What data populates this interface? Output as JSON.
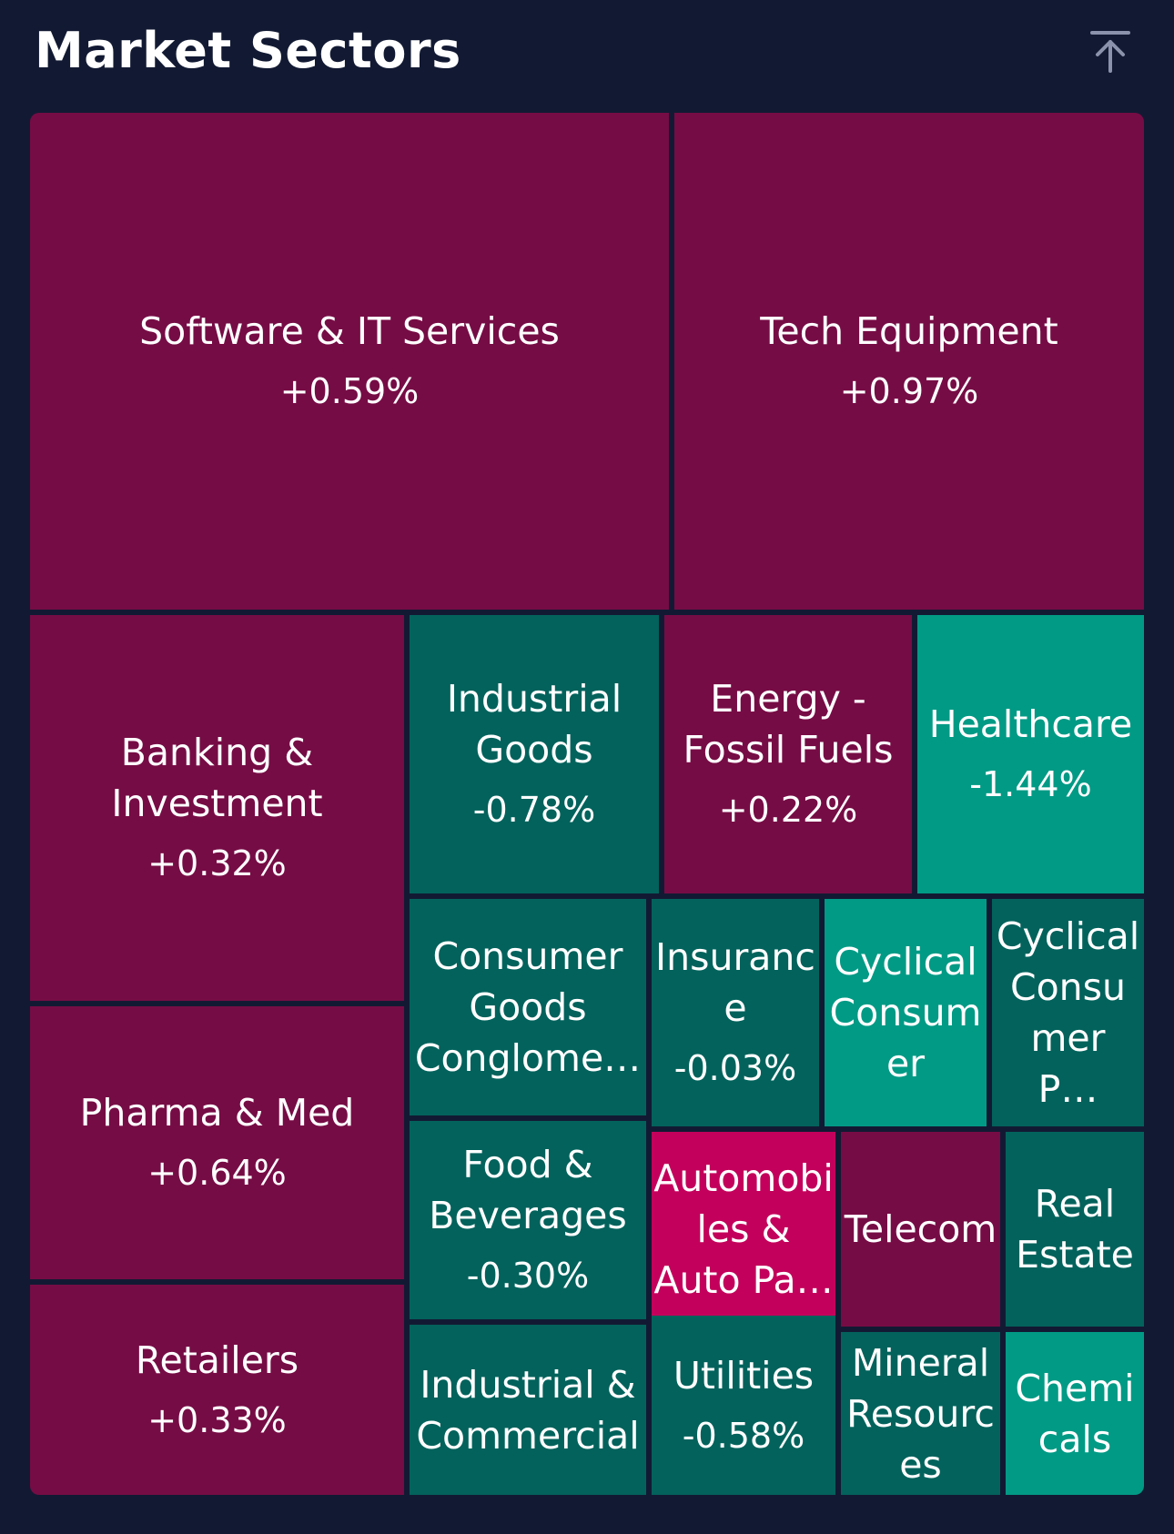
{
  "header": {
    "title": "Market Sectors",
    "collapse_icon": "arrow-up-to-line-icon"
  },
  "colors": {
    "background": "#121a33",
    "positive": "#760c45",
    "positive_strong": "#c3005b",
    "negative": "#03625c",
    "negative_strong": "#019a85"
  },
  "sectors": [
    {
      "name_lines": [
        "Software & IT Services"
      ],
      "change": "+0.59%"
    },
    {
      "name_lines": [
        "Tech Equipment"
      ],
      "change": "+0.97%"
    },
    {
      "name_lines": [
        "Banking &",
        "Investment"
      ],
      "change": "+0.32%"
    },
    {
      "name_lines": [
        "Industrial",
        "Goods"
      ],
      "change": "-0.78%"
    },
    {
      "name_lines": [
        "Energy -",
        "Fossil Fuels"
      ],
      "change": "+0.22%"
    },
    {
      "name_lines": [
        "Healthcare"
      ],
      "change": "-1.44%"
    },
    {
      "name_lines": [
        "Pharma & Med"
      ],
      "change": "+0.64%"
    },
    {
      "name_lines": [
        "Consumer",
        "Goods",
        "Conglome…"
      ],
      "change": ""
    },
    {
      "name_lines": [
        "Insuranc",
        "e"
      ],
      "change": "-0.03%"
    },
    {
      "name_lines": [
        "Cyclical",
        "Consum",
        "er"
      ],
      "change": ""
    },
    {
      "name_lines": [
        "Cyclical",
        "Consu",
        "mer P…"
      ],
      "change": ""
    },
    {
      "name_lines": [
        "Food &",
        "Beverages"
      ],
      "change": "-0.30%"
    },
    {
      "name_lines": [
        "Automobi",
        "les &",
        "Auto Pa…"
      ],
      "change": ""
    },
    {
      "name_lines": [
        "Telecom"
      ],
      "change": ""
    },
    {
      "name_lines": [
        "Real",
        "Estate"
      ],
      "change": ""
    },
    {
      "name_lines": [
        "Retailers"
      ],
      "change": "+0.33%"
    },
    {
      "name_lines": [
        "Industrial &",
        "Commercial"
      ],
      "change": ""
    },
    {
      "name_lines": [
        "Utilities"
      ],
      "change": "-0.58%"
    },
    {
      "name_lines": [
        "Mineral",
        "Resourc",
        "es"
      ],
      "change": ""
    },
    {
      "name_lines": [
        "Chemi",
        "cals"
      ],
      "change": ""
    }
  ]
}
